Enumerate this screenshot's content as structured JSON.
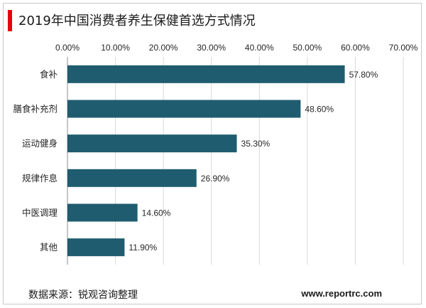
{
  "title": "2019年中国消费者养生保健首选方式情况",
  "source": "数据来源：锐观咨询整理",
  "website": "www.reportrc.com",
  "colors": {
    "bar": "#1f5c6f",
    "accent": "#e60012",
    "grid": "#d9d9d9"
  },
  "chart_data": {
    "type": "bar",
    "orientation": "horizontal",
    "title": "2019年中国消费者养生保健首选方式情况",
    "categories": [
      "食补",
      "膳食补充剂",
      "运动健身",
      "规律作息",
      "中医调理",
      "其他"
    ],
    "values": [
      57.8,
      48.6,
      35.3,
      26.9,
      14.6,
      11.9
    ],
    "value_labels": [
      "57.80%",
      "48.60%",
      "35.30%",
      "26.90%",
      "14.60%",
      "11.90%"
    ],
    "x_ticks": [
      "0.00%",
      "10.00%",
      "20.00%",
      "30.00%",
      "40.00%",
      "50.00%",
      "60.00%",
      "70.00%"
    ],
    "xlim": [
      0,
      70
    ],
    "axis_position": "top",
    "grid": true,
    "legend": "none"
  }
}
